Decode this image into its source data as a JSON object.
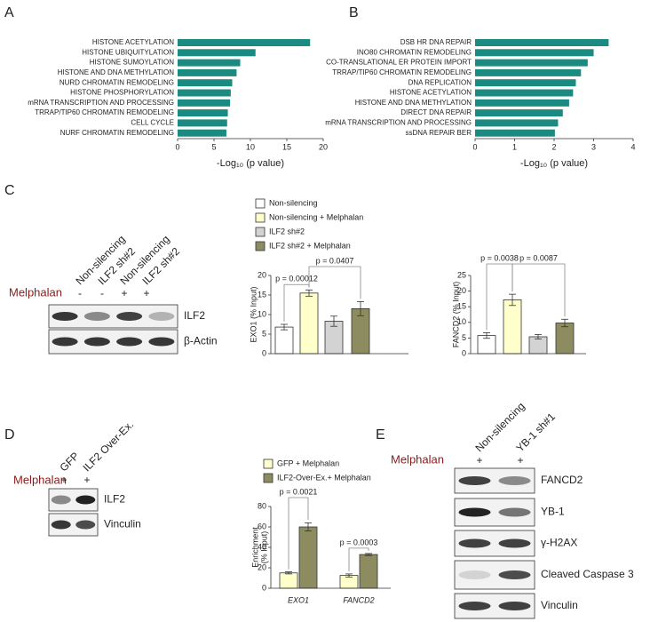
{
  "panels": [
    "A",
    "B",
    "C",
    "D",
    "E"
  ],
  "chart_data": [
    {
      "type": "barh",
      "color": "#1b8a80",
      "categories": [
        "HISTONE ACETYLATION",
        "HISTONE UBIQUITYLATION",
        "HISTONE SUMOYLATION",
        "HISTONE AND DNA METHYLATION",
        "NURD CHROMATIN REMODELING",
        "HISTONE PHOSPHORYLATION",
        "mRNA TRANSCRIPTION AND PROCESSING",
        "TRRAP/TIP60 CHROMATIN REMODELING",
        "CELL CYCLE",
        "NURF CHROMATIN REMODELING"
      ],
      "values": [
        18.2,
        10.7,
        8.6,
        8.1,
        7.5,
        7.3,
        7.2,
        6.9,
        6.8,
        6.7
      ],
      "xlim": [
        0,
        20
      ],
      "xticks": [
        0,
        5,
        10,
        15,
        20
      ],
      "x_label": "-Log₁₀ (p value)"
    },
    {
      "type": "barh",
      "color": "#1b8a80",
      "categories": [
        "DSB HR DNA REPAIR",
        "INO80 CHROMATIN REMODELING",
        "CO-TRANSLATIONAL ER PROTEIN IMPORT",
        "TRRAP/TIP60 CHROMATIN REMODELING",
        "DNA REPLICATION",
        "HISTONE ACETYLATION",
        "HISTONE AND DNA METHYLATION",
        "DIRECT DNA REPAIR",
        "mRNA TRANSCRIPTION AND PROCESSING",
        "ssDNA REPAIR BER"
      ],
      "values": [
        3.38,
        3.0,
        2.85,
        2.68,
        2.55,
        2.48,
        2.38,
        2.22,
        2.1,
        2.02
      ],
      "xlim": [
        0,
        4
      ],
      "xticks": [
        0,
        1,
        2,
        3,
        4
      ],
      "x_label": "-Log₁₀ (p value)"
    },
    {
      "type": "bar",
      "y_label": "EXO1 (% Input)",
      "series": [
        {
          "name": "Non-silencing",
          "color": "#ffffff",
          "values": [
            6.8
          ],
          "errors": [
            0.7
          ]
        },
        {
          "name": "Non-silencing + Melphalan",
          "color": "#ffffcc",
          "values": [
            15.5
          ],
          "errors": [
            0.8
          ]
        },
        {
          "name": "ILF2 sh#2",
          "color": "#d3d3d3",
          "values": [
            8.3
          ],
          "errors": [
            1.3
          ]
        },
        {
          "name": "ILF2 sh#2 + Melphalan",
          "color": "#8c8c60",
          "values": [
            11.5
          ],
          "errors": [
            1.8
          ]
        }
      ],
      "ylim": [
        0,
        20
      ],
      "yticks": [
        0,
        5,
        10,
        15,
        20
      ],
      "annotations": [
        "p = 0.00012",
        "p = 0.0407"
      ]
    },
    {
      "type": "bar",
      "y_label": "FANCD2 (% Input)",
      "values": [
        5.8,
        17.2,
        5.4,
        9.8
      ],
      "errors": [
        0.9,
        1.8,
        0.7,
        1.2
      ],
      "colors": [
        "#ffffff",
        "#ffffcc",
        "#d3d3d3",
        "#8c8c60"
      ],
      "ylim": [
        0,
        25
      ],
      "yticks": [
        0,
        5,
        10,
        15,
        20,
        25
      ],
      "annotations": [
        "p = 0.0038",
        "p = 0.0087"
      ]
    },
    {
      "type": "bar",
      "y_label": [
        "Enrichment",
        "(% Input)"
      ],
      "categories": [
        "EXO1",
        "FANCD2"
      ],
      "series": [
        {
          "name": "GFP + Melphalan",
          "color": "#ffffcc",
          "values": [
            15,
            12.5
          ],
          "errors": [
            1,
            1.5
          ]
        },
        {
          "name": "ILF2-Over-Ex.+ Melphalan",
          "color": "#8c8c60",
          "values": [
            60,
            33
          ],
          "errors": [
            4,
            1
          ]
        }
      ],
      "ylim": [
        0,
        80
      ],
      "yticks": [
        0,
        20,
        40,
        60,
        80
      ],
      "annotations": [
        "p = 0.0021",
        "p = 0.0003"
      ]
    }
  ],
  "blots": [
    {
      "treatment": "Melphalan",
      "lanes": [
        "Non-silencing",
        "ILF2 sh#2",
        "Non-silencing",
        "ILF2 sh#2"
      ],
      "signs": [
        "-",
        "-",
        "+",
        "+"
      ],
      "rows": [
        "ILF2",
        "β-Actin"
      ]
    },
    {
      "treatment": "Melphalan",
      "lanes": [
        "GFP",
        "ILF2 Over-Ex."
      ],
      "signs": [
        "+",
        "+"
      ],
      "rows": [
        "ILF2",
        "Vinculin"
      ]
    },
    {
      "treatment": "Melphalan",
      "lanes": [
        "Non-silencing",
        "YB-1 sh#1"
      ],
      "signs": [
        "+",
        "+"
      ],
      "rows": [
        "FANCD2",
        "YB-1",
        "γ-H2AX",
        "Cleaved Caspase 3",
        "Vinculin"
      ]
    }
  ]
}
